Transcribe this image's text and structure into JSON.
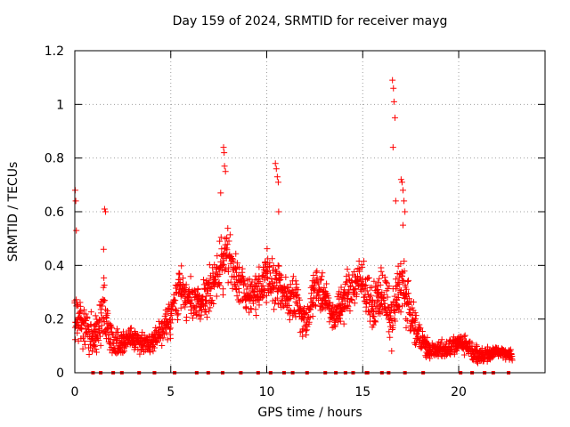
{
  "chart_data": {
    "type": "scatter",
    "title": "Day 159 of 2024, SRMTID for receiver mayg",
    "xlabel": "GPS time / hours",
    "ylabel": "SRMTID / TECUs",
    "xlim": [
      0,
      24.5
    ],
    "ylim": [
      0,
      1.2
    ],
    "xticks": [
      0,
      5,
      10,
      15,
      20
    ],
    "yticks": [
      0,
      0.2,
      0.4,
      0.6,
      0.8,
      1,
      1.2
    ],
    "ytick_labels": [
      "0",
      "0.2",
      "0.4",
      "0.6",
      "0.8",
      "1",
      "1.2"
    ],
    "grid": true,
    "marker": "+",
    "color": "#ff0000",
    "series": [
      {
        "name": "SRMTID",
        "profile": [
          {
            "x": 0.0,
            "y": 0.21,
            "spread": 0.07
          },
          {
            "x": 0.5,
            "y": 0.17,
            "spread": 0.07
          },
          {
            "x": 1.0,
            "y": 0.13,
            "spread": 0.07
          },
          {
            "x": 1.5,
            "y": 0.22,
            "spread": 0.12
          },
          {
            "x": 2.0,
            "y": 0.1,
            "spread": 0.05
          },
          {
            "x": 2.5,
            "y": 0.11,
            "spread": 0.04
          },
          {
            "x": 3.0,
            "y": 0.13,
            "spread": 0.04
          },
          {
            "x": 3.5,
            "y": 0.11,
            "spread": 0.03
          },
          {
            "x": 4.0,
            "y": 0.11,
            "spread": 0.03
          },
          {
            "x": 4.5,
            "y": 0.16,
            "spread": 0.05
          },
          {
            "x": 5.0,
            "y": 0.2,
            "spread": 0.06
          },
          {
            "x": 5.5,
            "y": 0.33,
            "spread": 0.07
          },
          {
            "x": 6.0,
            "y": 0.26,
            "spread": 0.07
          },
          {
            "x": 6.5,
            "y": 0.25,
            "spread": 0.05
          },
          {
            "x": 7.0,
            "y": 0.31,
            "spread": 0.08
          },
          {
            "x": 7.5,
            "y": 0.37,
            "spread": 0.1
          },
          {
            "x": 8.0,
            "y": 0.45,
            "spread": 0.08
          },
          {
            "x": 8.5,
            "y": 0.33,
            "spread": 0.08
          },
          {
            "x": 9.0,
            "y": 0.3,
            "spread": 0.07
          },
          {
            "x": 9.5,
            "y": 0.3,
            "spread": 0.07
          },
          {
            "x": 10.0,
            "y": 0.36,
            "spread": 0.09
          },
          {
            "x": 10.5,
            "y": 0.34,
            "spread": 0.1
          },
          {
            "x": 11.0,
            "y": 0.28,
            "spread": 0.07
          },
          {
            "x": 11.5,
            "y": 0.29,
            "spread": 0.07
          },
          {
            "x": 12.0,
            "y": 0.18,
            "spread": 0.06
          },
          {
            "x": 12.5,
            "y": 0.32,
            "spread": 0.07
          },
          {
            "x": 13.0,
            "y": 0.28,
            "spread": 0.06
          },
          {
            "x": 13.5,
            "y": 0.21,
            "spread": 0.05
          },
          {
            "x": 14.0,
            "y": 0.27,
            "spread": 0.07
          },
          {
            "x": 14.5,
            "y": 0.33,
            "spread": 0.08
          },
          {
            "x": 15.0,
            "y": 0.33,
            "spread": 0.07
          },
          {
            "x": 15.5,
            "y": 0.24,
            "spread": 0.07
          },
          {
            "x": 16.0,
            "y": 0.31,
            "spread": 0.08
          },
          {
            "x": 16.5,
            "y": 0.2,
            "spread": 0.08
          },
          {
            "x": 17.0,
            "y": 0.35,
            "spread": 0.12
          },
          {
            "x": 17.5,
            "y": 0.21,
            "spread": 0.06
          },
          {
            "x": 18.0,
            "y": 0.13,
            "spread": 0.05
          },
          {
            "x": 18.5,
            "y": 0.08,
            "spread": 0.03
          },
          {
            "x": 19.0,
            "y": 0.09,
            "spread": 0.03
          },
          {
            "x": 19.5,
            "y": 0.09,
            "spread": 0.03
          },
          {
            "x": 20.0,
            "y": 0.11,
            "spread": 0.03
          },
          {
            "x": 20.5,
            "y": 0.1,
            "spread": 0.03
          },
          {
            "x": 21.0,
            "y": 0.06,
            "spread": 0.03
          },
          {
            "x": 21.5,
            "y": 0.07,
            "spread": 0.03
          },
          {
            "x": 22.0,
            "y": 0.08,
            "spread": 0.02
          },
          {
            "x": 22.5,
            "y": 0.07,
            "spread": 0.02
          }
        ],
        "spikes": [
          {
            "x": 0.02,
            "y": 0.68
          },
          {
            "x": 0.05,
            "y": 0.64
          },
          {
            "x": 0.08,
            "y": 0.53
          },
          {
            "x": 1.55,
            "y": 0.61
          },
          {
            "x": 1.6,
            "y": 0.6
          },
          {
            "x": 1.5,
            "y": 0.46
          },
          {
            "x": 7.6,
            "y": 0.67
          },
          {
            "x": 7.75,
            "y": 0.84
          },
          {
            "x": 7.78,
            "y": 0.82
          },
          {
            "x": 7.8,
            "y": 0.77
          },
          {
            "x": 7.85,
            "y": 0.75
          },
          {
            "x": 10.45,
            "y": 0.78
          },
          {
            "x": 10.5,
            "y": 0.76
          },
          {
            "x": 10.55,
            "y": 0.73
          },
          {
            "x": 10.6,
            "y": 0.71
          },
          {
            "x": 10.62,
            "y": 0.6
          },
          {
            "x": 16.55,
            "y": 1.09
          },
          {
            "x": 16.6,
            "y": 1.06
          },
          {
            "x": 16.63,
            "y": 1.01
          },
          {
            "x": 16.68,
            "y": 0.95
          },
          {
            "x": 16.58,
            "y": 0.84
          },
          {
            "x": 16.72,
            "y": 0.64
          },
          {
            "x": 17.0,
            "y": 0.72
          },
          {
            "x": 17.05,
            "y": 0.71
          },
          {
            "x": 17.1,
            "y": 0.68
          },
          {
            "x": 17.15,
            "y": 0.64
          },
          {
            "x": 17.2,
            "y": 0.6
          },
          {
            "x": 17.1,
            "y": 0.55
          }
        ],
        "zero_markers": [
          0.95,
          1.35,
          2.0,
          2.45,
          3.35,
          4.15,
          5.2,
          6.35,
          6.95,
          7.7,
          8.65,
          9.55,
          10.2,
          10.9,
          11.35,
          12.1,
          13.05,
          13.6,
          14.1,
          14.5,
          15.2,
          15.25,
          16.0,
          16.35,
          17.2,
          18.15,
          20.1,
          20.7,
          21.35,
          21.8,
          22.6
        ]
      }
    ]
  }
}
